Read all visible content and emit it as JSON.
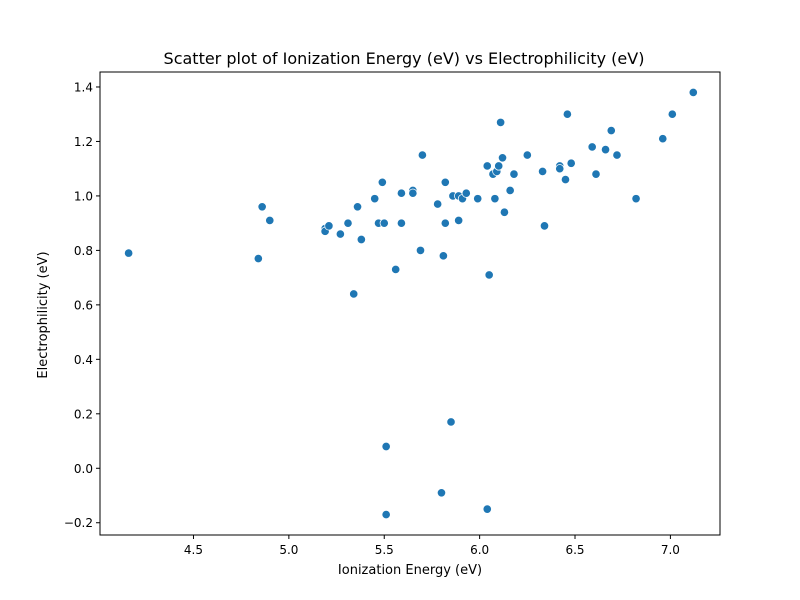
{
  "chart_data": {
    "type": "scatter",
    "title": "Scatter plot of Ionization Energy (eV) vs Electrophilicity (eV)",
    "xlabel": "Ionization Energy (eV)",
    "ylabel": "Electrophilicity (eV)",
    "xlim": [
      4.01,
      7.26
    ],
    "ylim": [
      -0.245,
      1.455
    ],
    "xticks": [
      4.5,
      5.0,
      5.5,
      6.0,
      6.5,
      7.0
    ],
    "yticks": [
      -0.2,
      0.0,
      0.2,
      0.4,
      0.6,
      0.8,
      1.0,
      1.2,
      1.4
    ],
    "xtick_labels": [
      "4.5",
      "5.0",
      "5.5",
      "6.0",
      "6.5",
      "7.0"
    ],
    "ytick_labels": [
      "−0.2",
      "0.0",
      "0.2",
      "0.4",
      "0.6",
      "0.8",
      "1.0",
      "1.2",
      "1.4"
    ],
    "grid": false,
    "marker_color": "#1f77b4",
    "points": [
      {
        "x": 4.16,
        "y": 0.79
      },
      {
        "x": 4.84,
        "y": 0.77
      },
      {
        "x": 4.86,
        "y": 0.96
      },
      {
        "x": 4.9,
        "y": 0.91
      },
      {
        "x": 5.19,
        "y": 0.88
      },
      {
        "x": 5.19,
        "y": 0.87
      },
      {
        "x": 5.21,
        "y": 0.89
      },
      {
        "x": 5.27,
        "y": 0.86
      },
      {
        "x": 5.31,
        "y": 0.9
      },
      {
        "x": 5.34,
        "y": 0.64
      },
      {
        "x": 5.36,
        "y": 0.96
      },
      {
        "x": 5.38,
        "y": 0.84
      },
      {
        "x": 5.45,
        "y": 0.99
      },
      {
        "x": 5.47,
        "y": 0.9
      },
      {
        "x": 5.49,
        "y": 1.05
      },
      {
        "x": 5.5,
        "y": 0.9
      },
      {
        "x": 5.51,
        "y": 0.08
      },
      {
        "x": 5.51,
        "y": -0.17
      },
      {
        "x": 5.56,
        "y": 0.73
      },
      {
        "x": 5.59,
        "y": 1.01
      },
      {
        "x": 5.59,
        "y": 0.9
      },
      {
        "x": 5.65,
        "y": 1.02
      },
      {
        "x": 5.65,
        "y": 1.01
      },
      {
        "x": 5.69,
        "y": 0.8
      },
      {
        "x": 5.7,
        "y": 1.15
      },
      {
        "x": 5.78,
        "y": 0.97
      },
      {
        "x": 5.8,
        "y": -0.09
      },
      {
        "x": 5.81,
        "y": 0.78
      },
      {
        "x": 5.82,
        "y": 1.05
      },
      {
        "x": 5.82,
        "y": 0.9
      },
      {
        "x": 5.85,
        "y": 0.17
      },
      {
        "x": 5.86,
        "y": 1.0
      },
      {
        "x": 5.89,
        "y": 1.0
      },
      {
        "x": 5.89,
        "y": 0.91
      },
      {
        "x": 5.91,
        "y": 0.99
      },
      {
        "x": 5.93,
        "y": 1.01
      },
      {
        "x": 5.99,
        "y": 0.99
      },
      {
        "x": 6.04,
        "y": 1.11
      },
      {
        "x": 6.04,
        "y": -0.15
      },
      {
        "x": 6.05,
        "y": 0.71
      },
      {
        "x": 6.07,
        "y": 1.08
      },
      {
        "x": 6.08,
        "y": 0.99
      },
      {
        "x": 6.09,
        "y": 1.09
      },
      {
        "x": 6.1,
        "y": 1.11
      },
      {
        "x": 6.11,
        "y": 1.27
      },
      {
        "x": 6.12,
        "y": 1.14
      },
      {
        "x": 6.13,
        "y": 0.94
      },
      {
        "x": 6.16,
        "y": 1.02
      },
      {
        "x": 6.18,
        "y": 1.08
      },
      {
        "x": 6.25,
        "y": 1.15
      },
      {
        "x": 6.33,
        "y": 1.09
      },
      {
        "x": 6.34,
        "y": 0.89
      },
      {
        "x": 6.42,
        "y": 1.11
      },
      {
        "x": 6.42,
        "y": 1.1
      },
      {
        "x": 6.45,
        "y": 1.06
      },
      {
        "x": 6.46,
        "y": 1.3
      },
      {
        "x": 6.48,
        "y": 1.12
      },
      {
        "x": 6.59,
        "y": 1.18
      },
      {
        "x": 6.61,
        "y": 1.08
      },
      {
        "x": 6.66,
        "y": 1.17
      },
      {
        "x": 6.69,
        "y": 1.24
      },
      {
        "x": 6.72,
        "y": 1.15
      },
      {
        "x": 6.82,
        "y": 0.99
      },
      {
        "x": 6.96,
        "y": 1.21
      },
      {
        "x": 7.01,
        "y": 1.3
      },
      {
        "x": 7.12,
        "y": 1.38
      }
    ]
  }
}
